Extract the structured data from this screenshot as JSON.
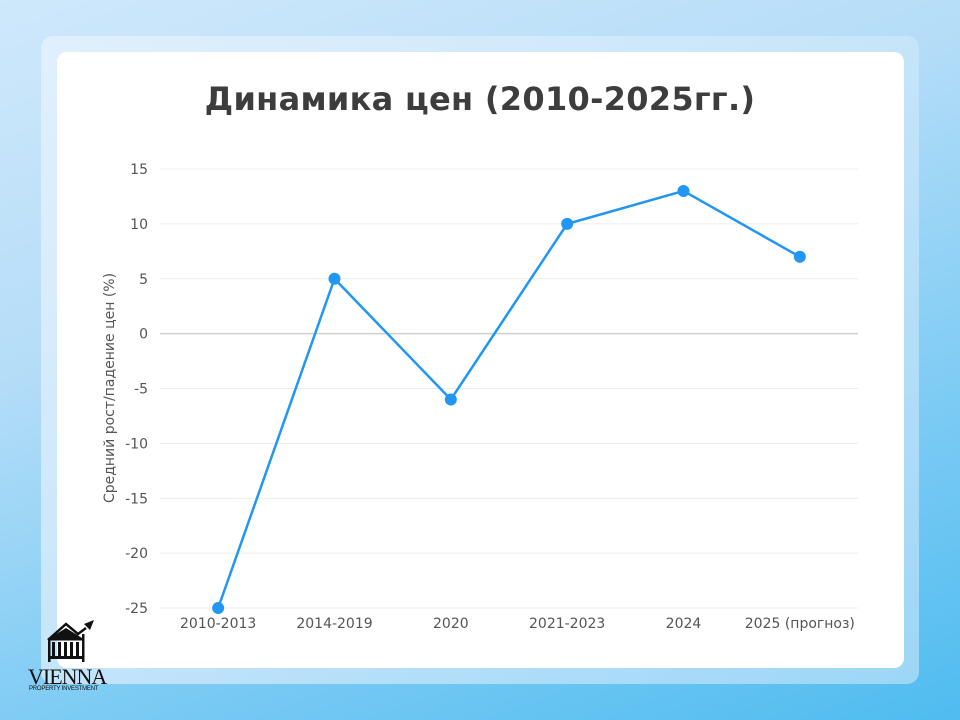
{
  "chart_data": {
    "type": "line",
    "title": "Динамика цен (2010-2025гг.)",
    "xlabel": "",
    "ylabel": "Средний рост/падение цен (%)",
    "categories": [
      "2010-2013",
      "2014-2019",
      "2020",
      "2021-2023",
      "2024",
      "2025 (прогноз)"
    ],
    "series": [
      {
        "name": "Средний рост/падение цен (%)",
        "values": [
          -25,
          5,
          -6,
          10,
          13,
          7
        ],
        "color": "#2196f3"
      }
    ],
    "ylim": [
      -25,
      15
    ],
    "yticks": [
      15,
      10,
      5,
      0,
      -5,
      -10,
      -15,
      -20,
      -25
    ],
    "grid": true,
    "legend": "none"
  },
  "logo": {
    "name": "VIENNA",
    "tagline": "PROPERTY INVESTMENT"
  }
}
